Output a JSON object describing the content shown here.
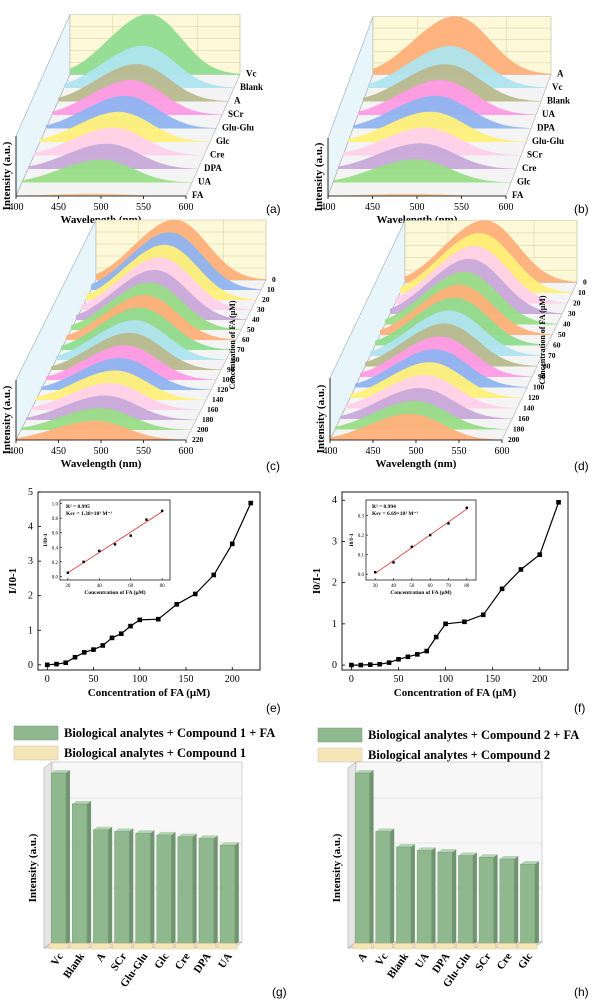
{
  "figure": {
    "panel_labels": [
      "(a)",
      "(b)",
      "(c)",
      "(d)",
      "(e)",
      "(f)",
      "(g)",
      "(h)"
    ]
  },
  "chart_data": [
    {
      "type": "line",
      "panel": "(a)",
      "title": "",
      "xlabel": "Wavelength (nm)",
      "ylabel": "Intensity (a.u.)",
      "xlim": [
        400,
        600
      ],
      "xticks": [
        400,
        450,
        500,
        550,
        600
      ],
      "peak_nm": 500,
      "series": [
        {
          "name": "FA",
          "rel_peak": 0.04,
          "color": "#f5c99a"
        },
        {
          "name": "UA",
          "rel_peak": 0.38,
          "color": "#99dd88"
        },
        {
          "name": "DPA",
          "rel_peak": 0.42,
          "color": "#c8a9d9"
        },
        {
          "name": "Cre",
          "rel_peak": 0.46,
          "color": "#ffd0ea"
        },
        {
          "name": "Glc",
          "rel_peak": 0.5,
          "color": "#fff07a"
        },
        {
          "name": "Glu-Glu",
          "rel_peak": 0.54,
          "color": "#8fb4f0"
        },
        {
          "name": "SCr",
          "rel_peak": 0.58,
          "color": "#ff9be6"
        },
        {
          "name": "A",
          "rel_peak": 0.62,
          "color": "#b9b98e"
        },
        {
          "name": "Blank",
          "rel_peak": 0.7,
          "color": "#aee4ee"
        },
        {
          "name": "Vc",
          "rel_peak": 1.0,
          "color": "#8fdc8f"
        }
      ]
    },
    {
      "type": "line",
      "panel": "(b)",
      "title": "",
      "xlabel": "Wavelength (nm)",
      "ylabel": "Intensity (a.u.)",
      "xlim": [
        400,
        600
      ],
      "xticks": [
        400,
        450,
        500,
        550,
        600
      ],
      "peak_nm": 500,
      "series": [
        {
          "name": "FA",
          "rel_peak": 0.04,
          "color": "#f5c99a"
        },
        {
          "name": "Glc",
          "rel_peak": 0.4,
          "color": "#99dd88"
        },
        {
          "name": "Cre",
          "rel_peak": 0.44,
          "color": "#c8a9d9"
        },
        {
          "name": "SCr",
          "rel_peak": 0.48,
          "color": "#ffd0ea"
        },
        {
          "name": "Glu-Glu",
          "rel_peak": 0.52,
          "color": "#fff07a"
        },
        {
          "name": "DPA",
          "rel_peak": 0.56,
          "color": "#8fb4f0"
        },
        {
          "name": "UA",
          "rel_peak": 0.6,
          "color": "#ff9be6"
        },
        {
          "name": "Blank",
          "rel_peak": 0.64,
          "color": "#b9b98e"
        },
        {
          "name": "Vc",
          "rel_peak": 0.72,
          "color": "#aee4ee"
        },
        {
          "name": "A",
          "rel_peak": 1.0,
          "color": "#ffb07a"
        }
      ]
    },
    {
      "type": "line",
      "panel": "(c)",
      "title": "",
      "xlabel": "Wavelength (nm)",
      "ylabel": "Intensity (a.u.)",
      "zlabel": "Concentration of FA (μM)",
      "xlim": [
        400,
        600
      ],
      "xticks": [
        400,
        450,
        500,
        550,
        600
      ],
      "concentrations": [
        220,
        200,
        180,
        160,
        140,
        120,
        100,
        90,
        80,
        70,
        60,
        50,
        40,
        30,
        20,
        10,
        0
      ],
      "tick_labels_shown": [
        "0",
        "10",
        "20",
        "30",
        "40",
        "50",
        "60",
        "70",
        "80",
        "90",
        "100",
        "120",
        "140",
        "160",
        "180",
        "200",
        "220"
      ],
      "colors": [
        "#ffb07a",
        "#99dd88",
        "#c8a9d9",
        "#ffd0ea",
        "#fff07a",
        "#8fb4f0",
        "#ff9be6",
        "#b9b98e",
        "#aee4ee",
        "#8fdc8f",
        "#ffb07a",
        "#99dd88",
        "#c8a9d9",
        "#ffd0ea",
        "#fff07a",
        "#8fb4f0",
        "#ffb07a"
      ]
    },
    {
      "type": "line",
      "panel": "(d)",
      "title": "",
      "xlabel": "Wavelength (nm)",
      "ylabel": "Intensity (a.u.)",
      "zlabel": "Concentration of FA (μM)",
      "xlim": [
        400,
        600
      ],
      "xticks": [
        400,
        450,
        500,
        550,
        600
      ],
      "concentrations": [
        200,
        180,
        160,
        140,
        120,
        100,
        90,
        80,
        70,
        60,
        50,
        40,
        30,
        20,
        10,
        0
      ],
      "tick_labels_shown": [
        "0",
        "10",
        "20",
        "30",
        "40",
        "50",
        "60",
        "70",
        "80",
        "90",
        "100",
        "120",
        "140",
        "160",
        "180",
        "200"
      ],
      "colors": [
        "#ffb07a",
        "#99dd88",
        "#c8a9d9",
        "#ffd0ea",
        "#fff07a",
        "#8fb4f0",
        "#ff9be6",
        "#b9b98e",
        "#aee4ee",
        "#8fdc8f",
        "#ffb07a",
        "#99dd88",
        "#c8a9d9",
        "#ffd0ea",
        "#fff07a",
        "#ffb07a"
      ]
    },
    {
      "type": "line",
      "panel": "(e)",
      "title": "",
      "xlabel": "Concentration of FA (μM)",
      "ylabel": "I/I0-1",
      "xlim": [
        -10,
        230
      ],
      "ylim": [
        -0.15,
        5
      ],
      "xticks": [
        0,
        50,
        100,
        150,
        200
      ],
      "yticks": [
        0,
        1,
        2,
        3,
        4,
        5
      ],
      "x": [
        0,
        10,
        20,
        30,
        40,
        50,
        60,
        70,
        80,
        90,
        100,
        120,
        140,
        160,
        180,
        200,
        220
      ],
      "y": [
        0.0,
        0.02,
        0.06,
        0.22,
        0.36,
        0.44,
        0.56,
        0.78,
        0.9,
        1.12,
        1.3,
        1.32,
        1.75,
        2.05,
        2.6,
        3.5,
        4.68
      ],
      "inset": {
        "text_r2": "R² = 0.995",
        "text_ksv": "Ksv = 1.38×10³ M⁻¹",
        "xlabel": "Concentration of FA (μM)",
        "ylabel": "I/I0-1",
        "xticks": [
          20,
          40,
          60,
          80
        ],
        "yticks": [
          0.0,
          0.2,
          0.4,
          0.6,
          0.8,
          1.0
        ],
        "x": [
          20,
          30,
          40,
          50,
          60,
          70,
          80
        ],
        "y": [
          0.05,
          0.2,
          0.35,
          0.44,
          0.56,
          0.78,
          0.9
        ]
      }
    },
    {
      "type": "line",
      "panel": "(f)",
      "title": "",
      "xlabel": "Concentration of FA (μM)",
      "ylabel": "I0/I-1",
      "xlim": [
        -10,
        230
      ],
      "ylim": [
        -0.12,
        4.2
      ],
      "xticks": [
        0,
        50,
        100,
        150,
        200
      ],
      "yticks": [
        0,
        1,
        2,
        3,
        4
      ],
      "x": [
        0,
        10,
        20,
        30,
        40,
        50,
        60,
        70,
        80,
        90,
        100,
        120,
        140,
        160,
        180,
        200,
        220
      ],
      "y": [
        0.0,
        0.0,
        0.01,
        0.02,
        0.06,
        0.14,
        0.2,
        0.26,
        0.34,
        0.68,
        1.0,
        1.05,
        1.22,
        1.85,
        2.32,
        2.68,
        3.95
      ],
      "inset": {
        "text_r2": "R² = 0.994",
        "text_ksv": "Ksv = 6.69×10³ M⁻¹",
        "xlabel": "Concentration of FA (μM)",
        "ylabel": "I0/I-1",
        "xticks": [
          30,
          40,
          50,
          60,
          70,
          80
        ],
        "yticks": [
          0.0,
          0.1,
          0.2,
          0.3
        ],
        "x": [
          30,
          40,
          50,
          60,
          70,
          80
        ],
        "y": [
          0.01,
          0.06,
          0.14,
          0.2,
          0.26,
          0.34
        ]
      }
    },
    {
      "type": "bar",
      "panel": "(g)",
      "title": "",
      "xlabel": "",
      "ylabel": "Intensity (a.u.)",
      "legend": [
        "Biological analytes + Compound 1 + FA",
        "Biological analytes + Compound 1"
      ],
      "categories": [
        "Vc",
        "Blank",
        "A",
        "SCr",
        "Glu-Glu",
        "Glc",
        "Cre",
        "DPA",
        "UA"
      ],
      "series": [
        {
          "name": "Biological analytes + Compound 1 + FA",
          "values": [
            100,
            82,
            67,
            66,
            65,
            64,
            63,
            62,
            58
          ],
          "color": "#8fb88f"
        },
        {
          "name": "Biological analytes + Compound 1",
          "values": [
            1.5,
            1.5,
            1.5,
            1.5,
            1.5,
            1.5,
            1.5,
            1.5,
            1.5
          ],
          "color": "#f5e6b8"
        }
      ]
    },
    {
      "type": "bar",
      "panel": "(h)",
      "title": "",
      "xlabel": "",
      "ylabel": "Intensity (a.u.)",
      "legend": [
        "Biological analytes + Compound 2 + FA",
        "Biological analytes + Compound 2"
      ],
      "categories": [
        "A",
        "Vc",
        "Blank",
        "UA",
        "DPA",
        "Glu-Glu",
        "SCr",
        "Cre",
        "Glc"
      ],
      "series": [
        {
          "name": "Biological analytes + Compound 2 + FA",
          "values": [
            100,
            66,
            57,
            55,
            54,
            52,
            51,
            50,
            47
          ],
          "color": "#8fb88f"
        },
        {
          "name": "Biological analytes + Compound 2",
          "values": [
            1.5,
            1.5,
            1.5,
            1.5,
            1.5,
            1.5,
            1.5,
            1.5,
            1.5
          ],
          "color": "#f5e6b8"
        }
      ]
    }
  ]
}
